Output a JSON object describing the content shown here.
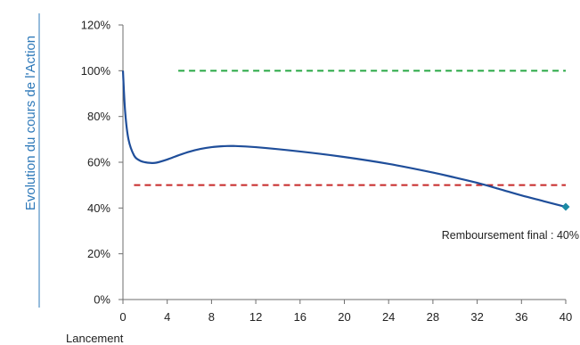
{
  "chart_data": {
    "type": "line",
    "ylabel": "Evolution du cours de l'Action",
    "xlabel": "Lancement",
    "xlim": [
      0,
      40
    ],
    "ylim": [
      0,
      120
    ],
    "x_ticks": [
      0,
      4,
      8,
      12,
      16,
      20,
      24,
      28,
      32,
      36,
      40
    ],
    "y_ticks": [
      "0%",
      "20%",
      "40%",
      "60%",
      "80%",
      "100%",
      "120%"
    ],
    "y_tick_values": [
      0,
      20,
      40,
      60,
      80,
      100,
      120
    ],
    "series": [
      {
        "color": "#1f4e9a",
        "points": [
          [
            0,
            100
          ],
          [
            0.2,
            82
          ],
          [
            0.5,
            70
          ],
          [
            1,
            63
          ],
          [
            1.5,
            60.8
          ],
          [
            2,
            60
          ],
          [
            2.5,
            59.7
          ],
          [
            3,
            59.8
          ],
          [
            4,
            61.2
          ],
          [
            5,
            63
          ],
          [
            6,
            64.6
          ],
          [
            7,
            65.8
          ],
          [
            8,
            66.6
          ],
          [
            9,
            67
          ],
          [
            10,
            67.1
          ],
          [
            12,
            66.6
          ],
          [
            16,
            64.7
          ],
          [
            20,
            62.3
          ],
          [
            24,
            59.3
          ],
          [
            28,
            55.5
          ],
          [
            30,
            53.3
          ],
          [
            32,
            51
          ],
          [
            34,
            48.3
          ],
          [
            36,
            45.5
          ],
          [
            38,
            43
          ],
          [
            40,
            40.5
          ]
        ]
      }
    ],
    "reference_lines": [
      {
        "y": 100,
        "x_start": 5,
        "x_end": 40,
        "color": "#27a844",
        "style": "dashed"
      },
      {
        "y": 50,
        "x_start": 1,
        "x_end": 40,
        "color": "#c62828",
        "style": "dashed"
      }
    ],
    "marker": {
      "x": 40,
      "y": 40.5,
      "shape": "diamond",
      "color": "#1c8aa5"
    },
    "annotations": [
      {
        "text": "Remboursement final : 40%",
        "x": 40,
        "y": 40.5
      }
    ],
    "grid": false
  }
}
